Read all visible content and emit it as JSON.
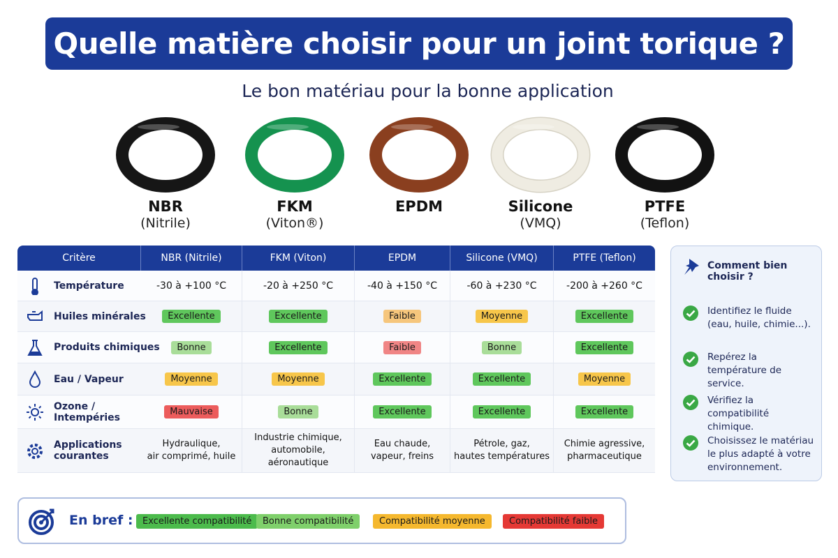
{
  "title": "Quelle matière choisir pour un joint torique ?",
  "subtitle": "Le bon matériau pour la bonne application",
  "rings": [
    {
      "name": "NBR",
      "sub": "(Nitrile)",
      "color": "#161616"
    },
    {
      "name": "FKM",
      "sub": "(Viton®)",
      "color": "#15924f"
    },
    {
      "name": "EPDM",
      "color": "#8a3f1f"
    },
    {
      "name": "Silicone",
      "sub": "(VMQ)",
      "color": "#efece2"
    },
    {
      "name": "PTFE",
      "sub": "(Teflon)",
      "color": "#121212"
    }
  ],
  "table": {
    "header": [
      "Critère",
      "NBR (Nitrile)",
      "FKM (Viton)",
      "EPDM",
      "Silicone (VMQ)",
      "PTFE (Teflon)"
    ],
    "rows": [
      {
        "label": [
          "Température"
        ],
        "cells": [
          "-30 à +100 °C",
          "-20 à +250 °C",
          "-40 à +150 °C",
          "-60 à +230 °C",
          "-200 à +260 °C"
        ]
      },
      {
        "label": [
          "Huiles minérales"
        ],
        "cells": [
          {
            "text": "Excellente",
            "color": "#5fc75c"
          },
          {
            "text": "Excellente",
            "color": "#5fc75c"
          },
          {
            "text": "Faible",
            "color": "#f6c67c"
          },
          {
            "text": "Moyenne",
            "color": "#f7c64a"
          },
          {
            "text": "Excellente",
            "color": "#5fc75c"
          }
        ]
      },
      {
        "label": [
          "Produits chimiques"
        ],
        "cells": [
          {
            "text": "Bonne",
            "color": "#a9dd99"
          },
          {
            "text": "Excellente",
            "color": "#5fc75c"
          },
          {
            "text": "Faible",
            "color": "#f08585"
          },
          {
            "text": "Bonne",
            "color": "#a9dd99"
          },
          {
            "text": "Excellente",
            "color": "#5fc75c"
          }
        ]
      },
      {
        "label": [
          "Eau / Vapeur"
        ],
        "cells": [
          {
            "text": "Moyenne",
            "color": "#f7c64a"
          },
          {
            "text": "Moyenne",
            "color": "#f7c64a"
          },
          {
            "text": "Excellente",
            "color": "#5fc75c"
          },
          {
            "text": "Excellente",
            "color": "#5fc75c"
          },
          {
            "text": "Moyenne",
            "color": "#f7c64a"
          }
        ]
      },
      {
        "label": [
          "Ozone /",
          "Intempéries"
        ],
        "cells": [
          {
            "text": "Mauvaise",
            "color": "#ec5c5c"
          },
          {
            "text": "Bonne",
            "color": "#a9dd99"
          },
          {
            "text": "Excellente",
            "color": "#5fc75c"
          },
          {
            "text": "Excellente",
            "color": "#5fc75c"
          },
          {
            "text": "Excellente",
            "color": "#5fc75c"
          }
        ]
      },
      {
        "label": [
          "Applications",
          "courantes"
        ],
        "cells": [
          [
            "Hydraulique,",
            "air comprimé, huile"
          ],
          [
            "Industrie chimique,",
            "automobile, aéronautique"
          ],
          [
            "Eau chaude,",
            "vapeur, freins"
          ],
          [
            "Pétrole, gaz,",
            "hautes températures"
          ],
          [
            "Chimie agressive,",
            "pharmaceutique"
          ]
        ]
      }
    ]
  },
  "sidebar": {
    "title": "Comment bien choisir ?",
    "items": [
      "Identifiez le fluide (eau, huile, chimie...).",
      "Repérez la température de service.",
      "Vérifiez la compatibilité chimique.",
      "Choisissez le matériau le plus adapté à votre environnement."
    ]
  },
  "legend": {
    "label": "En bref :",
    "items": [
      {
        "text": "Excellente compatibilité",
        "color": "#4cbb4c"
      },
      {
        "text": "Bonne compatibilité",
        "color": "#7fd06b"
      },
      {
        "text": "Compatibilité moyenne",
        "color": "#f5b82e"
      },
      {
        "text": "Compatibilité faible",
        "color": "#e53935"
      }
    ]
  }
}
